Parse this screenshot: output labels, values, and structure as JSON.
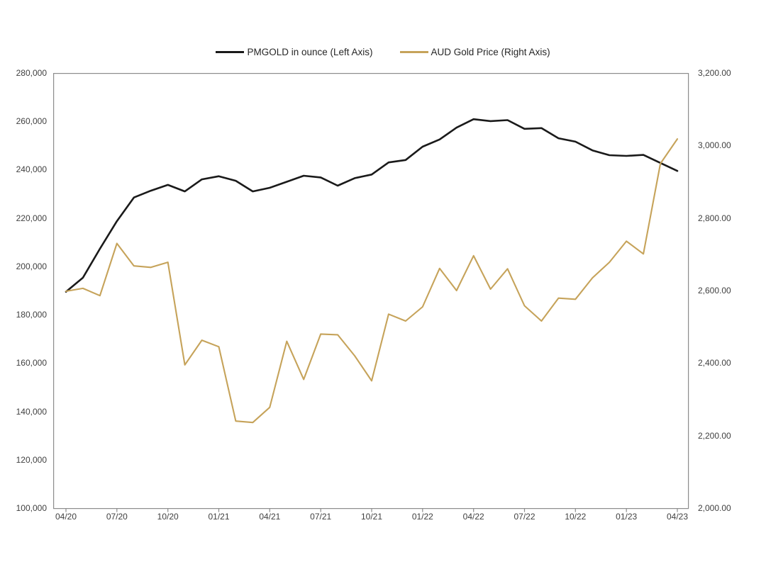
{
  "chart_data": {
    "type": "line",
    "title": "",
    "legend_position": "top",
    "grid": false,
    "frame_color": "#8c8c8c",
    "text_color": "#404040",
    "x": [
      "04/20",
      "05/20",
      "06/20",
      "07/20",
      "08/20",
      "09/20",
      "10/20",
      "11/20",
      "12/20",
      "01/21",
      "02/21",
      "03/21",
      "04/21",
      "05/21",
      "06/21",
      "07/21",
      "08/21",
      "09/21",
      "10/21",
      "11/21",
      "12/21",
      "01/22",
      "02/22",
      "03/22",
      "04/22",
      "05/22",
      "06/22",
      "07/22",
      "08/22",
      "09/22",
      "10/22",
      "11/22",
      "12/22",
      "01/23",
      "02/23",
      "03/23",
      "04/23"
    ],
    "x_axis": {
      "tick_labels": [
        "04/20",
        "07/20",
        "10/20",
        "01/21",
        "04/21",
        "07/21",
        "10/21",
        "01/22",
        "04/22",
        "07/22",
        "10/22",
        "01/23",
        "04/23"
      ],
      "tick_positions": [
        0,
        3,
        6,
        9,
        12,
        15,
        18,
        21,
        24,
        27,
        30,
        33,
        36
      ]
    },
    "left_axis": {
      "min": 100000,
      "max": 280000,
      "step": 20000,
      "tick_labels": [
        "280,000",
        "260,000",
        "240,000",
        "220,000",
        "200,000",
        "180,000",
        "160,000",
        "140,000",
        "120,000",
        "100,000"
      ]
    },
    "right_axis": {
      "min": 2000,
      "max": 3200,
      "step": 200,
      "tick_labels": [
        "3,200.00",
        "3,000.00",
        "2,800.00",
        "2,600.00",
        "2,400.00",
        "2,200.00",
        "2,000.00"
      ]
    },
    "series": [
      {
        "name": "PMGOLD in ounce (Left Axis)",
        "axis": "left",
        "color": "#1a1a1a",
        "values": [
          189500,
          195300,
          207300,
          218700,
          228500,
          231300,
          233700,
          231000,
          236000,
          237300,
          235400,
          231000,
          232500,
          235000,
          237500,
          236800,
          233400,
          236500,
          238000,
          243000,
          244000,
          249500,
          252500,
          257400,
          260900,
          260100,
          260500,
          256900,
          257200,
          253000,
          251600,
          248000,
          246000,
          245700,
          246100,
          242800,
          239500
        ]
      },
      {
        "name": "AUD Gold Price (Right Axis)",
        "axis": "right",
        "color": "#c6a35a",
        "values": [
          2598,
          2606,
          2586,
          2730,
          2668,
          2664,
          2678,
          2395,
          2463,
          2445,
          2240,
          2236,
          2278,
          2460,
          2355,
          2480,
          2478,
          2420,
          2351,
          2535,
          2516,
          2555,
          2661,
          2600,
          2696,
          2604,
          2660,
          2558,
          2516,
          2579,
          2576,
          2635,
          2678,
          2736,
          2701,
          2950,
          3018
        ]
      }
    ]
  }
}
